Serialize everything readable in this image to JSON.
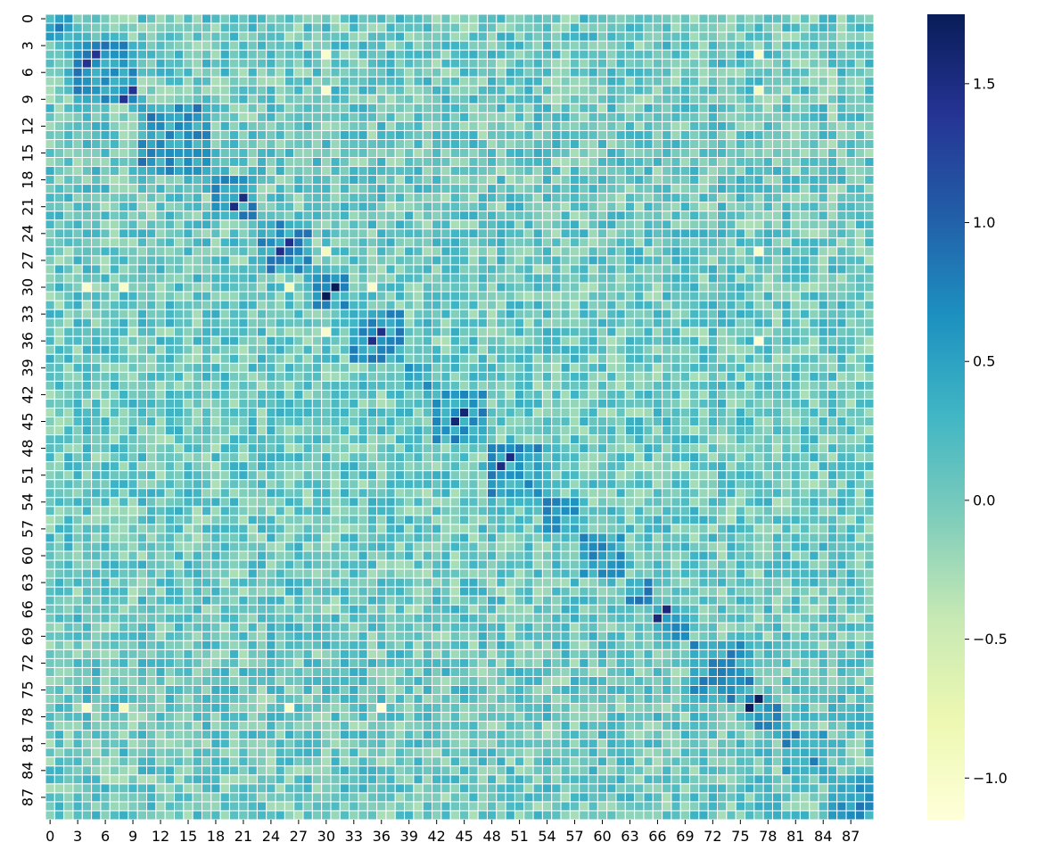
{
  "chart_data": {
    "type": "heatmap",
    "title": "",
    "xlabel": "",
    "ylabel": "",
    "n_rows": 90,
    "n_cols": 90,
    "x_tick_labels": [
      "0",
      "3",
      "6",
      "9",
      "12",
      "15",
      "18",
      "21",
      "24",
      "27",
      "30",
      "33",
      "36",
      "39",
      "42",
      "45",
      "48",
      "51",
      "54",
      "57",
      "60",
      "63",
      "66",
      "69",
      "72",
      "75",
      "78",
      "81",
      "84",
      "87"
    ],
    "y_tick_labels": [
      "0",
      "3",
      "6",
      "9",
      "12",
      "15",
      "18",
      "21",
      "24",
      "27",
      "30",
      "33",
      "36",
      "39",
      "42",
      "45",
      "48",
      "51",
      "54",
      "57",
      "60",
      "63",
      "66",
      "69",
      "72",
      "75",
      "78",
      "81",
      "84",
      "87"
    ],
    "value_range": [
      -1.15,
      1.75
    ],
    "colormap": "YlGnBu",
    "colormap_stops": [
      "#ffffd9",
      "#edf8b1",
      "#c7e9b4",
      "#7fcdbb",
      "#41b6c4",
      "#1d91c0",
      "#225ea8",
      "#253494",
      "#081d58"
    ],
    "cell_gap_color": "#ffffff",
    "colorbar": {
      "position": "right",
      "ticks": [
        -1.0,
        -0.5,
        0.0,
        0.5,
        1.0,
        1.5
      ],
      "tick_labels": [
        "−1.0",
        "−0.5",
        "0.0",
        "0.5",
        "1.0",
        "1.5"
      ]
    },
    "groups": [
      [
        0,
        2
      ],
      [
        3,
        9
      ],
      [
        10,
        17
      ],
      [
        18,
        22
      ],
      [
        23,
        28
      ],
      [
        29,
        32
      ],
      [
        33,
        38
      ],
      [
        39,
        41
      ],
      [
        42,
        47
      ],
      [
        48,
        53
      ],
      [
        54,
        57
      ],
      [
        58,
        62
      ],
      [
        63,
        65
      ],
      [
        66,
        69
      ],
      [
        70,
        76
      ],
      [
        77,
        79
      ],
      [
        80,
        84
      ],
      [
        85,
        89
      ]
    ],
    "block_values": {
      "within_group": 0.55,
      "between_groups": 0.05,
      "noise_amplitude": 0.35
    },
    "strong_cells": [
      [
        30,
        31,
        1.75
      ],
      [
        31,
        30,
        1.75
      ],
      [
        77,
        76,
        1.72
      ],
      [
        76,
        77,
        1.72
      ],
      [
        44,
        45,
        1.6
      ],
      [
        45,
        44,
        1.6
      ],
      [
        67,
        66,
        1.55
      ],
      [
        66,
        67,
        1.55
      ],
      [
        20,
        21,
        1.5
      ],
      [
        21,
        20,
        1.5
      ],
      [
        49,
        50,
        1.5
      ],
      [
        50,
        49,
        1.5
      ],
      [
        25,
        26,
        1.45
      ],
      [
        26,
        25,
        1.45
      ],
      [
        35,
        36,
        1.45
      ],
      [
        36,
        35,
        1.45
      ],
      [
        4,
        5,
        1.4
      ],
      [
        5,
        4,
        1.4
      ],
      [
        8,
        9,
        1.4
      ],
      [
        9,
        8,
        1.4
      ]
    ],
    "weak_cells": [
      [
        4,
        30,
        -1.0
      ],
      [
        30,
        4,
        -1.0
      ],
      [
        8,
        30,
        -1.0
      ],
      [
        30,
        8,
        -1.0
      ],
      [
        26,
        30,
        -0.9
      ],
      [
        30,
        26,
        -0.9
      ],
      [
        35,
        30,
        -1.0
      ],
      [
        30,
        35,
        -1.0
      ],
      [
        77,
        26,
        -1.0
      ],
      [
        26,
        77,
        -1.0
      ],
      [
        77,
        36,
        -1.1
      ],
      [
        36,
        77,
        -1.1
      ],
      [
        4,
        77,
        -1.0
      ],
      [
        77,
        4,
        -1.0
      ],
      [
        8,
        77,
        -0.9
      ],
      [
        77,
        8,
        -0.9
      ]
    ]
  }
}
